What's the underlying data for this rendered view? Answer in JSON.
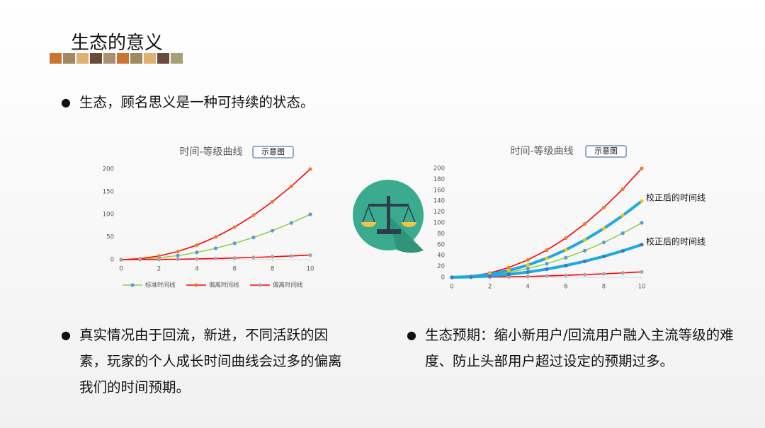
{
  "title": "生态的意义",
  "bullets": [
    "生态，顾名思义是一种可持续的状态。",
    "真实情况由于回流，新进，不同活跃的因素，玩家的个人成长时间曲线会过多的偏离我们的时间预期。",
    "生态预期：缩小新用户/回流用户融入主流等级的难度、防止头部用户超过设定的预期过多。"
  ],
  "chart_data": [
    {
      "type": "line",
      "title": "时间-等级曲线",
      "button": "示意图",
      "x": [
        0,
        1,
        2,
        3,
        4,
        5,
        6,
        7,
        8,
        9,
        10
      ],
      "xlim": [
        0,
        10
      ],
      "xticks": [
        0,
        2,
        4,
        6,
        8,
        10
      ],
      "ylim": [
        0,
        200
      ],
      "yticks": [
        0,
        50,
        100,
        150,
        200
      ],
      "legend": "bottom",
      "series": [
        {
          "name": "标准时间线",
          "color": "#92d050",
          "marker_color": "#5b9bd5",
          "values": [
            0,
            1,
            4,
            9,
            16,
            25,
            36,
            49,
            64,
            81,
            100
          ]
        },
        {
          "name": "偏离时间线",
          "color": "#ff0000",
          "marker_color": "#ed7d31",
          "values": [
            0,
            2,
            8,
            18,
            32,
            50,
            72,
            98,
            128,
            162,
            200
          ]
        },
        {
          "name": "偏离时间线",
          "color": "#ff0000",
          "marker_color": "#a5a5a5",
          "values": [
            0,
            0.1,
            0.4,
            0.9,
            1.6,
            2.5,
            3.6,
            4.9,
            6.4,
            8.1,
            10
          ]
        }
      ]
    },
    {
      "type": "line",
      "title": "时间-等级曲线",
      "button": "示意图",
      "x": [
        0,
        1,
        2,
        3,
        4,
        5,
        6,
        7,
        8,
        9,
        10
      ],
      "xlim": [
        0,
        10
      ],
      "xticks": [
        0,
        2,
        4,
        6,
        8,
        10
      ],
      "ylim": [
        0,
        200
      ],
      "yticks": [
        0,
        20,
        40,
        60,
        80,
        100,
        120,
        140,
        160,
        180,
        200
      ],
      "series": [
        {
          "color": "#ff0000",
          "marker_color": "#ed7d31",
          "values": [
            0,
            2,
            8,
            18,
            32,
            50,
            72,
            98,
            128,
            162,
            200
          ]
        },
        {
          "color": "#92d050",
          "marker_color": "#5b9bd5",
          "values": [
            0,
            1,
            4,
            9,
            16,
            25,
            36,
            49,
            64,
            81,
            100
          ]
        },
        {
          "color": "#ff0000",
          "marker_color": "#a5a5a5",
          "values": [
            0,
            0.1,
            0.4,
            0.9,
            1.6,
            2.5,
            3.6,
            4.9,
            6.4,
            8.1,
            10
          ]
        },
        {
          "name": "校正后的时间线",
          "color": "#1fa9e1",
          "marker_color": "#ffc000",
          "line_width": 4,
          "values": [
            0,
            1.4,
            5.6,
            12.6,
            22.4,
            35,
            50.4,
            68.6,
            89.6,
            113.4,
            140
          ]
        },
        {
          "name": "校正后的时间线",
          "color": "#1fa9e1",
          "marker_color": "#4472c4",
          "line_width": 4,
          "values": [
            0,
            0.6,
            2.4,
            5.4,
            9.6,
            15,
            21.6,
            29.4,
            38.4,
            48.6,
            60
          ]
        }
      ]
    }
  ]
}
